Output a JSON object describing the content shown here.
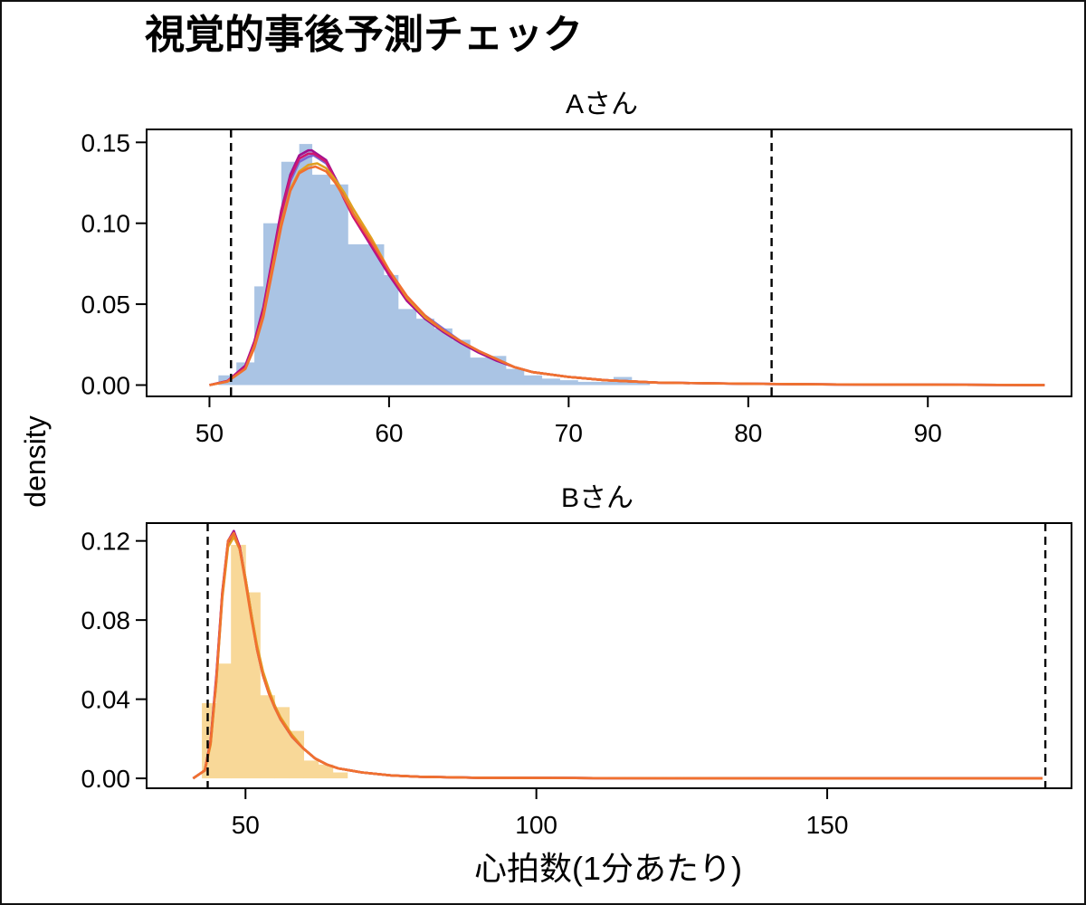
{
  "title": "視覚的事後予測チェック",
  "colors": {
    "panel_a_hist": "#aac4e4",
    "panel_b_hist": "#f8d898",
    "draw_colors": [
      "#7b68d4",
      "#a01090",
      "#d01870",
      "#e0a020",
      "#f07030",
      "#4878c8"
    ],
    "interval_line": "#000000"
  },
  "chart_data": [
    {
      "type": "area",
      "subtitle": "Aさん",
      "xlabel": "心拍数(1分あたり)",
      "ylabel": "density",
      "xlim": [
        46.5,
        98
      ],
      "ylim": [
        -0.007,
        0.158
      ],
      "xticks": [
        50,
        60,
        70,
        80,
        90
      ],
      "xtick_labels": [
        "50",
        "60",
        "70",
        "80",
        "90"
      ],
      "yticks": [
        0,
        0.05,
        0.1,
        0.15
      ],
      "ytick_labels": [
        "0.00",
        "0.05",
        "0.10",
        "0.15"
      ],
      "grid": false,
      "interval_lines": [
        51.2,
        81.3
      ],
      "histogram": {
        "bins": [
          50.5,
          51.5,
          52.5,
          53.0,
          54.0,
          55.0,
          55.7,
          56.7,
          57.7,
          58.7,
          59.7,
          60.5,
          61.5,
          62.5,
          63.5,
          64.5,
          65.5,
          66.5,
          67.5,
          68.5,
          69.5,
          70.5,
          71.5,
          72.5,
          73.5,
          74.5
        ],
        "heights": [
          0.006,
          0.014,
          0.061,
          0.1,
          0.138,
          0.149,
          0.13,
          0.124,
          0.087,
          0.087,
          0.068,
          0.047,
          0.041,
          0.035,
          0.028,
          0.017,
          0.018,
          0.01,
          0.006,
          0.004,
          0.003,
          0.002,
          0.002,
          0.005,
          0.002
        ]
      },
      "series": [
        {
          "x": [
            50,
            51,
            52,
            52.5,
            53,
            53.5,
            54,
            54.5,
            55,
            55.5,
            55.8,
            56.5,
            57,
            57.5,
            58,
            59,
            60,
            61,
            62,
            63,
            64,
            65,
            66,
            67,
            68,
            70,
            72,
            75,
            80,
            85,
            90,
            96.5
          ],
          "y": [
            0,
            0.0025,
            0.011,
            0.025,
            0.045,
            0.075,
            0.105,
            0.126,
            0.138,
            0.141,
            0.142,
            0.137,
            0.128,
            0.118,
            0.106,
            0.088,
            0.07,
            0.054,
            0.043,
            0.035,
            0.027,
            0.021,
            0.016,
            0.011,
            0.008,
            0.005,
            0.003,
            0.0015,
            0.0008,
            0.0004,
            0.0002,
            0
          ]
        },
        {
          "x": [
            50,
            51,
            52,
            52.5,
            53,
            53.5,
            54,
            54.5,
            55,
            55.5,
            55.7,
            56.5,
            57,
            57.5,
            58,
            59,
            60,
            61,
            62,
            63,
            64,
            65,
            66,
            67,
            68,
            70,
            72,
            75,
            80,
            85,
            90,
            96.5
          ],
          "y": [
            0,
            0.0025,
            0.012,
            0.027,
            0.048,
            0.078,
            0.108,
            0.13,
            0.142,
            0.145,
            0.145,
            0.139,
            0.128,
            0.116,
            0.104,
            0.086,
            0.068,
            0.052,
            0.041,
            0.033,
            0.026,
            0.02,
            0.015,
            0.011,
            0.008,
            0.005,
            0.003,
            0.0015,
            0.0008,
            0.0004,
            0.0002,
            0
          ]
        },
        {
          "x": [
            50,
            51,
            52,
            52.5,
            53,
            53.5,
            54,
            54.5,
            55,
            55.5,
            55.8,
            56.5,
            57,
            57.5,
            58,
            59,
            60,
            61,
            62,
            63,
            64,
            65,
            66,
            67,
            68,
            70,
            72,
            75,
            80,
            85,
            90,
            96.5
          ],
          "y": [
            0,
            0.0025,
            0.011,
            0.026,
            0.046,
            0.076,
            0.106,
            0.128,
            0.14,
            0.143,
            0.143,
            0.138,
            0.127,
            0.115,
            0.104,
            0.087,
            0.069,
            0.053,
            0.042,
            0.034,
            0.027,
            0.021,
            0.016,
            0.011,
            0.008,
            0.005,
            0.003,
            0.0015,
            0.0008,
            0.0004,
            0.0002,
            0
          ]
        },
        {
          "x": [
            50,
            51,
            52,
            52.5,
            53,
            53.5,
            54,
            54.5,
            55,
            55.5,
            56,
            56.5,
            57,
            57.5,
            58,
            59,
            60,
            61,
            62,
            63,
            64,
            65,
            66,
            67,
            68,
            70,
            72,
            75,
            80,
            85,
            90,
            96.5
          ],
          "y": [
            0,
            0.0022,
            0.01,
            0.024,
            0.043,
            0.072,
            0.1,
            0.121,
            0.132,
            0.136,
            0.137,
            0.134,
            0.127,
            0.119,
            0.109,
            0.091,
            0.071,
            0.054,
            0.042,
            0.034,
            0.027,
            0.021,
            0.016,
            0.011,
            0.008,
            0.005,
            0.003,
            0.0015,
            0.0008,
            0.0004,
            0.0002,
            0
          ]
        },
        {
          "x": [
            50,
            51,
            52,
            52.5,
            53,
            53.5,
            54,
            54.5,
            55,
            55.5,
            55.9,
            56.5,
            57,
            57.5,
            58,
            59,
            60,
            61,
            62,
            63,
            64,
            65,
            66,
            67,
            68,
            70,
            72,
            75,
            80,
            85,
            90,
            96.5
          ],
          "y": [
            0,
            0.0022,
            0.01,
            0.023,
            0.042,
            0.07,
            0.098,
            0.12,
            0.131,
            0.134,
            0.135,
            0.132,
            0.125,
            0.116,
            0.106,
            0.089,
            0.071,
            0.055,
            0.043,
            0.034,
            0.027,
            0.021,
            0.016,
            0.011,
            0.008,
            0.005,
            0.003,
            0.0015,
            0.0008,
            0.0004,
            0.0002,
            0
          ]
        }
      ]
    },
    {
      "type": "area",
      "subtitle": "Bさん",
      "xlabel": "心拍数(1分あたり)",
      "ylabel": "density",
      "xlim": [
        33,
        192
      ],
      "ylim": [
        -0.005,
        0.129
      ],
      "xticks": [
        50,
        100,
        150
      ],
      "xtick_labels": [
        "50",
        "100",
        "150"
      ],
      "yticks": [
        0,
        0.04,
        0.08,
        0.12
      ],
      "ytick_labels": [
        "0.00",
        "0.04",
        "0.08",
        "0.12"
      ],
      "grid": false,
      "interval_lines": [
        43.5,
        187.5
      ],
      "histogram": {
        "bins": [
          42.5,
          45,
          47.5,
          50,
          52.5,
          55,
          57.5,
          60,
          62.5,
          65,
          67.5
        ],
        "heights": [
          0.038,
          0.058,
          0.118,
          0.094,
          0.042,
          0.036,
          0.024,
          0.009,
          0.007,
          0.003
        ]
      },
      "series": [
        {
          "x": [
            41,
            43,
            44,
            45,
            46,
            47,
            48,
            49,
            50,
            51,
            52,
            53,
            54,
            55,
            56,
            58,
            60,
            62,
            64,
            66,
            68,
            70,
            75,
            80,
            90,
            110,
            140,
            187
          ],
          "y": [
            0,
            0.004,
            0.018,
            0.05,
            0.092,
            0.118,
            0.123,
            0.116,
            0.1,
            0.082,
            0.066,
            0.053,
            0.044,
            0.037,
            0.03,
            0.021,
            0.015,
            0.01,
            0.007,
            0.005,
            0.004,
            0.003,
            0.0015,
            0.0008,
            0.0003,
            0.0001,
            0,
            0
          ]
        },
        {
          "x": [
            41,
            43,
            44,
            45,
            46,
            47,
            48,
            49,
            50,
            51,
            52,
            53,
            54,
            55,
            56,
            58,
            60,
            62,
            64,
            66,
            68,
            70,
            75,
            80,
            90,
            110,
            140,
            187
          ],
          "y": [
            0,
            0.004,
            0.019,
            0.052,
            0.094,
            0.12,
            0.125,
            0.117,
            0.1,
            0.082,
            0.065,
            0.052,
            0.043,
            0.036,
            0.03,
            0.021,
            0.015,
            0.01,
            0.007,
            0.005,
            0.004,
            0.003,
            0.0015,
            0.0008,
            0.0003,
            0.0001,
            0,
            0
          ]
        },
        {
          "x": [
            41,
            43,
            44,
            45,
            46,
            47,
            48,
            49,
            50,
            51,
            52,
            53,
            54,
            55,
            56,
            58,
            60,
            62,
            64,
            66,
            68,
            70,
            75,
            80,
            90,
            110,
            140,
            187
          ],
          "y": [
            0,
            0.004,
            0.018,
            0.051,
            0.093,
            0.119,
            0.124,
            0.117,
            0.101,
            0.083,
            0.066,
            0.053,
            0.044,
            0.037,
            0.03,
            0.021,
            0.015,
            0.01,
            0.007,
            0.005,
            0.004,
            0.003,
            0.0015,
            0.0008,
            0.0003,
            0.0001,
            0,
            0
          ]
        },
        {
          "x": [
            41,
            43,
            44,
            45,
            46,
            47,
            48,
            49,
            50,
            51,
            52,
            53,
            54,
            55,
            56,
            58,
            60,
            62,
            64,
            66,
            68,
            70,
            75,
            80,
            90,
            110,
            140,
            187
          ],
          "y": [
            0,
            0.004,
            0.017,
            0.049,
            0.091,
            0.117,
            0.122,
            0.116,
            0.101,
            0.083,
            0.067,
            0.054,
            0.045,
            0.037,
            0.031,
            0.022,
            0.015,
            0.01,
            0.007,
            0.005,
            0.004,
            0.003,
            0.0015,
            0.0008,
            0.0003,
            0.0001,
            0,
            0
          ]
        },
        {
          "x": [
            41,
            43,
            44,
            45,
            46,
            47,
            48,
            49,
            50,
            51,
            52,
            53,
            54,
            55,
            56,
            58,
            60,
            62,
            64,
            66,
            68,
            70,
            75,
            80,
            90,
            110,
            140,
            187
          ],
          "y": [
            0,
            0.004,
            0.018,
            0.05,
            0.093,
            0.12,
            0.124,
            0.116,
            0.099,
            0.081,
            0.065,
            0.052,
            0.043,
            0.036,
            0.03,
            0.021,
            0.015,
            0.01,
            0.007,
            0.005,
            0.004,
            0.003,
            0.0015,
            0.0008,
            0.0003,
            0.0001,
            0,
            0
          ]
        }
      ]
    }
  ]
}
